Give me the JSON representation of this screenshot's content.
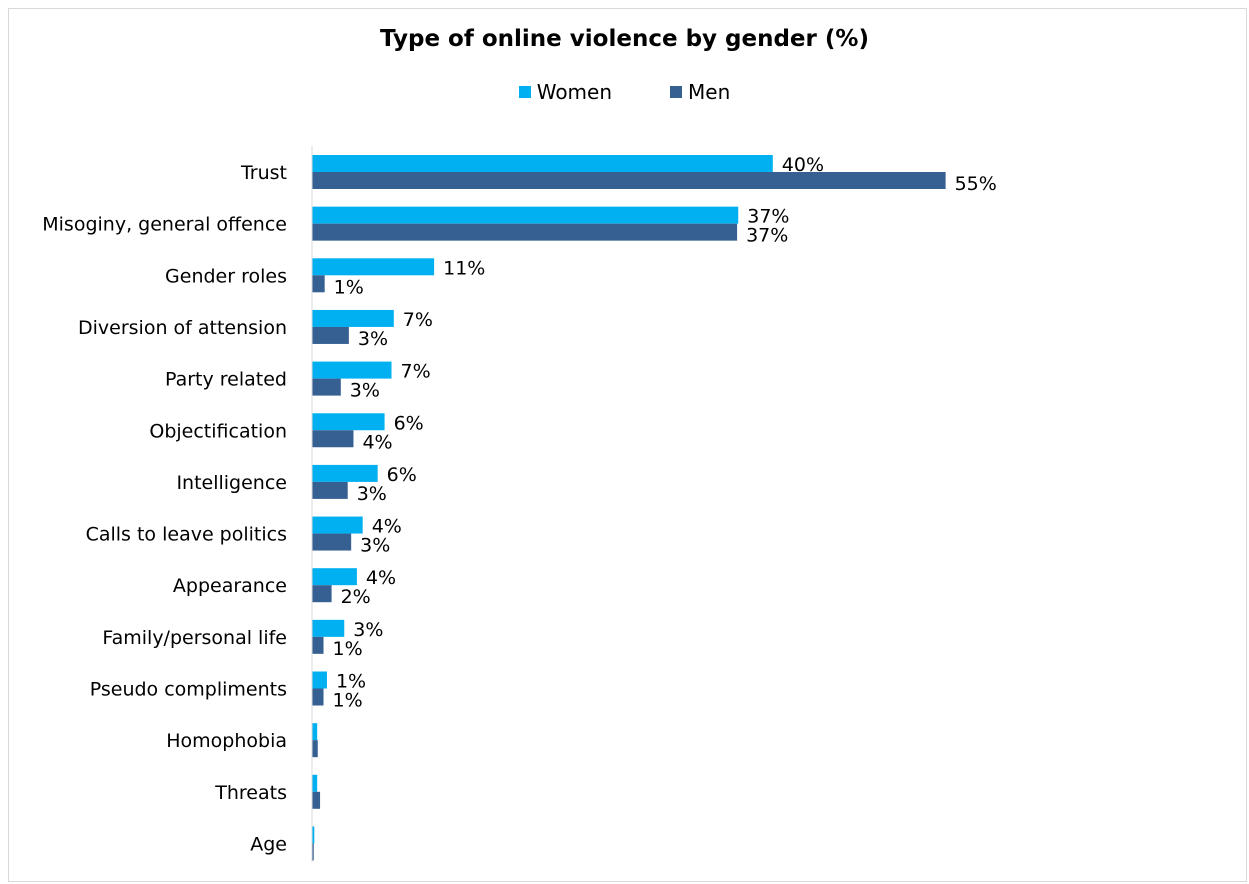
{
  "chart_data": {
    "type": "bar",
    "orientation": "horizontal",
    "title": "Type of online violence by gender (%)",
    "xlabel": "",
    "ylabel": "",
    "xlim": [
      0,
      56
    ],
    "grid": false,
    "legend_position": "top",
    "categories": [
      "Trust",
      "Misoginy, general offence",
      "Gender roles",
      "Diversion of attension",
      "Party related",
      "Objectification",
      "Intelligence",
      "Calls to leave politics",
      "Appearance",
      "Family/personal life",
      "Pseudo compliments",
      "Homophobia",
      "Threats",
      "Age"
    ],
    "series": [
      {
        "name": "Women",
        "color": "#00b0f0",
        "values": [
          40,
          37,
          10.6,
          7.1,
          6.9,
          6.3,
          5.7,
          4.4,
          3.9,
          2.8,
          1.3,
          0.45,
          0.45,
          0.2
        ],
        "labels": [
          "40%",
          "37%",
          "11%",
          "7%",
          "7%",
          "6%",
          "6%",
          "4%",
          "4%",
          "3%",
          "1%",
          "",
          "",
          ""
        ]
      },
      {
        "name": "Men",
        "color": "#366092",
        "values": [
          55,
          36.9,
          1.1,
          3.2,
          2.5,
          3.6,
          3.1,
          3.4,
          1.7,
          1,
          1,
          0.5,
          0.7,
          0.15
        ],
        "labels": [
          "55%",
          "37%",
          "1%",
          "3%",
          "3%",
          "4%",
          "3%",
          "3%",
          "2%",
          "1%",
          "1%",
          "",
          "",
          ""
        ]
      }
    ]
  }
}
